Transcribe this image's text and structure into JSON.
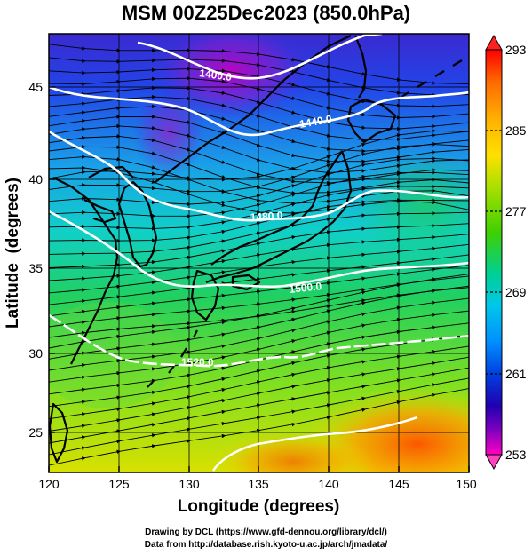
{
  "title": "MSM 00Z25Dec2023 (850.0hPa)",
  "xlabel": "Longitude (degrees)",
  "ylabel": "Latitude  (degrees)",
  "x_ticks": [
    "120",
    "125",
    "130",
    "135",
    "140",
    "145",
    "150"
  ],
  "y_ticks": [
    "25",
    "30",
    "35",
    "40",
    "45"
  ],
  "colorbar": {
    "ticks": [
      "293",
      "285",
      "277",
      "269",
      "261",
      "253"
    ],
    "colors": [
      "#ff0000",
      "#ff6a00",
      "#ffb000",
      "#ffe000",
      "#a8e000",
      "#40d000",
      "#00d090",
      "#00c8e8",
      "#0090ff",
      "#0040e0",
      "#2000b0",
      "#8000c0",
      "#ff00c0"
    ]
  },
  "contours": [
    {
      "label": "1400.0"
    },
    {
      "label": "1440.0"
    },
    {
      "label": "1480.0"
    },
    {
      "label": "1500.0"
    },
    {
      "label": "1520.0"
    }
  ],
  "footer": {
    "line1": "Drawing by DCL (https://www.gfd-dennou.org/library/dcl/)",
    "line2": "Data from http://database.rish.kyoto-u.ac.jp/arch/jmadata/"
  }
}
